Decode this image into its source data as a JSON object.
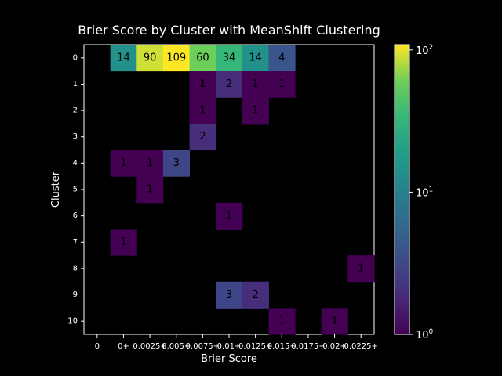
{
  "chart_data": {
    "type": "heatmap",
    "title": "Brier Score by Cluster with MeanShift Clustering",
    "xlabel": "Brier Score",
    "ylabel": "Cluster",
    "x_tick_labels": [
      "0",
      "0+",
      "0.0025+",
      "0.005+",
      "0.0075+",
      "0.01+",
      "0.0125+",
      "0.015+",
      "0.0175+",
      "0.02+",
      "0.0225+"
    ],
    "y_tick_labels": [
      "0",
      "1",
      "2",
      "3",
      "4",
      "5",
      "6",
      "7",
      "8",
      "9",
      "10"
    ],
    "color_scale": "log",
    "colormap": "viridis",
    "colorbar": {
      "min": 1,
      "max": 109,
      "tick_labels": [
        "10^0",
        "10^1",
        "10^2"
      ]
    },
    "background_color": "#000000",
    "cells": [
      {
        "row": 0,
        "col": 1,
        "value": 14
      },
      {
        "row": 0,
        "col": 2,
        "value": 90
      },
      {
        "row": 0,
        "col": 3,
        "value": 109
      },
      {
        "row": 0,
        "col": 4,
        "value": 60
      },
      {
        "row": 0,
        "col": 5,
        "value": 34
      },
      {
        "row": 0,
        "col": 6,
        "value": 14
      },
      {
        "row": 0,
        "col": 7,
        "value": 4
      },
      {
        "row": 1,
        "col": 4,
        "value": 1
      },
      {
        "row": 1,
        "col": 5,
        "value": 2
      },
      {
        "row": 1,
        "col": 6,
        "value": 1
      },
      {
        "row": 1,
        "col": 7,
        "value": 1
      },
      {
        "row": 2,
        "col": 4,
        "value": 1
      },
      {
        "row": 2,
        "col": 6,
        "value": 1
      },
      {
        "row": 3,
        "col": 4,
        "value": 2
      },
      {
        "row": 4,
        "col": 1,
        "value": 1
      },
      {
        "row": 4,
        "col": 2,
        "value": 1
      },
      {
        "row": 4,
        "col": 3,
        "value": 3
      },
      {
        "row": 5,
        "col": 2,
        "value": 1
      },
      {
        "row": 6,
        "col": 5,
        "value": 1
      },
      {
        "row": 7,
        "col": 1,
        "value": 1
      },
      {
        "row": 8,
        "col": 10,
        "value": 1
      },
      {
        "row": 9,
        "col": 5,
        "value": 3
      },
      {
        "row": 9,
        "col": 6,
        "value": 2
      },
      {
        "row": 10,
        "col": 7,
        "value": 1
      },
      {
        "row": 10,
        "col": 9,
        "value": 1
      }
    ]
  }
}
